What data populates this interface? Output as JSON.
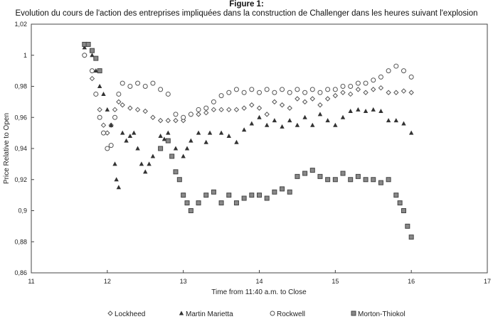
{
  "chart_data": {
    "type": "scatter",
    "title": "Figure 1:",
    "subtitle": "Evolution du cours de l'action des entreprises impliquées dans la construction de Challenger dans les heures suivant l'explosion",
    "xlabel": "Time from 11:40 a.m. to Close",
    "ylabel": "Price Relative to Open",
    "xlim": [
      11,
      17
    ],
    "ylim": [
      0.86,
      1.02
    ],
    "xticks": [
      "11",
      "12",
      "13",
      "14",
      "15",
      "16",
      "17"
    ],
    "yticks": [
      "1,02",
      "1",
      "0,98",
      "0,96",
      "0,94",
      "0,92",
      "0,9",
      "0,88",
      "0,86"
    ],
    "legend_position": "bottom",
    "series": [
      {
        "name": "Lockheed",
        "marker": "diamond",
        "x": [
          11.7,
          11.8,
          11.85,
          11.9,
          11.95,
          12.0,
          12.05,
          12.1,
          12.15,
          12.2,
          12.3,
          12.4,
          12.5,
          12.6,
          12.7,
          12.8,
          12.9,
          13.0,
          13.1,
          13.2,
          13.3,
          13.4,
          13.5,
          13.6,
          13.7,
          13.8,
          13.9,
          14.0,
          14.1,
          14.2,
          14.3,
          14.4,
          14.5,
          14.6,
          14.7,
          14.8,
          14.9,
          15.0,
          15.1,
          15.2,
          15.3,
          15.4,
          15.5,
          15.6,
          15.7,
          15.8,
          15.9,
          16.0
        ],
        "y": [
          1.0,
          0.985,
          0.975,
          0.965,
          0.955,
          0.95,
          0.955,
          0.965,
          0.97,
          0.968,
          0.966,
          0.965,
          0.964,
          0.96,
          0.958,
          0.958,
          0.958,
          0.958,
          0.962,
          0.962,
          0.963,
          0.965,
          0.965,
          0.965,
          0.965,
          0.966,
          0.968,
          0.966,
          0.962,
          0.97,
          0.968,
          0.966,
          0.972,
          0.97,
          0.972,
          0.968,
          0.972,
          0.974,
          0.976,
          0.975,
          0.978,
          0.976,
          0.978,
          0.979,
          0.976,
          0.976,
          0.977,
          0.976
        ]
      },
      {
        "name": "Martin Marietta",
        "marker": "triangle",
        "x": [
          11.7,
          11.8,
          11.85,
          11.9,
          11.95,
          12.0,
          12.05,
          12.1,
          12.12,
          12.15,
          12.2,
          12.25,
          12.3,
          12.35,
          12.4,
          12.45,
          12.5,
          12.55,
          12.6,
          12.7,
          12.75,
          12.8,
          12.9,
          13.0,
          13.05,
          13.1,
          13.2,
          13.3,
          13.35,
          13.5,
          13.6,
          13.7,
          13.8,
          13.9,
          14.0,
          14.1,
          14.2,
          14.3,
          14.4,
          14.5,
          14.6,
          14.7,
          14.8,
          14.9,
          15.0,
          15.1,
          15.2,
          15.3,
          15.4,
          15.5,
          15.6,
          15.7,
          15.8,
          15.9,
          16.0
        ],
        "y": [
          1.005,
          1.0,
          0.99,
          0.98,
          0.975,
          0.965,
          0.955,
          0.93,
          0.92,
          0.915,
          0.95,
          0.945,
          0.948,
          0.95,
          0.94,
          0.93,
          0.925,
          0.93,
          0.935,
          0.948,
          0.946,
          0.95,
          0.94,
          0.935,
          0.94,
          0.945,
          0.95,
          0.944,
          0.95,
          0.95,
          0.948,
          0.944,
          0.952,
          0.956,
          0.96,
          0.955,
          0.958,
          0.954,
          0.958,
          0.955,
          0.96,
          0.955,
          0.962,
          0.958,
          0.955,
          0.96,
          0.964,
          0.965,
          0.964,
          0.965,
          0.964,
          0.958,
          0.958,
          0.956,
          0.95
        ]
      },
      {
        "name": "Rockwell",
        "marker": "circle",
        "x": [
          11.7,
          11.8,
          11.85,
          11.9,
          11.95,
          12.0,
          12.05,
          12.1,
          12.15,
          12.2,
          12.3,
          12.4,
          12.5,
          12.6,
          12.7,
          12.8,
          12.9,
          13.0,
          13.1,
          13.2,
          13.3,
          13.4,
          13.5,
          13.6,
          13.7,
          13.8,
          13.9,
          14.0,
          14.1,
          14.2,
          14.3,
          14.4,
          14.5,
          14.6,
          14.7,
          14.8,
          14.9,
          15.0,
          15.1,
          15.2,
          15.3,
          15.4,
          15.5,
          15.6,
          15.7,
          15.8,
          15.9,
          16.0
        ],
        "y": [
          1.0,
          0.99,
          0.975,
          0.96,
          0.95,
          0.94,
          0.942,
          0.96,
          0.975,
          0.982,
          0.98,
          0.982,
          0.98,
          0.982,
          0.978,
          0.975,
          0.962,
          0.96,
          0.962,
          0.965,
          0.966,
          0.97,
          0.974,
          0.976,
          0.978,
          0.976,
          0.978,
          0.976,
          0.978,
          0.976,
          0.978,
          0.976,
          0.978,
          0.976,
          0.978,
          0.976,
          0.978,
          0.978,
          0.98,
          0.98,
          0.982,
          0.982,
          0.984,
          0.986,
          0.99,
          0.993,
          0.99,
          0.986
        ]
      },
      {
        "name": "Morton-Thiokol",
        "marker": "square",
        "x": [
          11.7,
          11.75,
          11.8,
          11.85,
          11.9,
          12.7,
          12.8,
          12.85,
          12.9,
          12.95,
          13.0,
          13.05,
          13.1,
          13.2,
          13.3,
          13.4,
          13.5,
          13.6,
          13.7,
          13.8,
          13.9,
          14.0,
          14.1,
          14.2,
          14.3,
          14.4,
          14.5,
          14.6,
          14.7,
          14.8,
          14.9,
          15.0,
          15.1,
          15.2,
          15.3,
          15.4,
          15.5,
          15.6,
          15.7,
          15.8,
          15.85,
          15.9,
          15.95,
          16.0
        ],
        "y": [
          1.007,
          1.007,
          1.003,
          0.998,
          0.99,
          0.94,
          0.945,
          0.935,
          0.925,
          0.92,
          0.91,
          0.905,
          0.9,
          0.905,
          0.91,
          0.912,
          0.905,
          0.91,
          0.905,
          0.908,
          0.91,
          0.91,
          0.908,
          0.912,
          0.914,
          0.912,
          0.922,
          0.924,
          0.926,
          0.922,
          0.92,
          0.92,
          0.924,
          0.92,
          0.922,
          0.92,
          0.92,
          0.918,
          0.92,
          0.91,
          0.905,
          0.9,
          0.89,
          0.883
        ]
      }
    ]
  }
}
